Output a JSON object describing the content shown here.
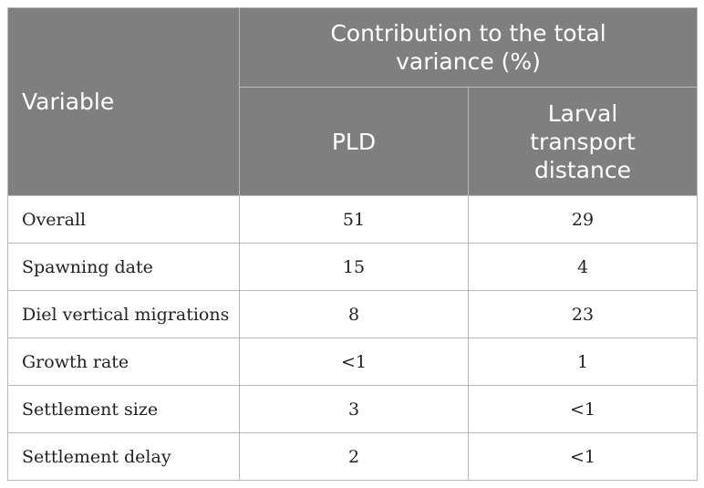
{
  "header": {
    "variable_label": "Variable",
    "group_label": "Contribution to the total variance (%)",
    "col_pld": "PLD",
    "col_transport": "Larval transport distance"
  },
  "rows": [
    {
      "variable": "Overall",
      "pld": "51",
      "transport": "29"
    },
    {
      "variable": "Spawning date",
      "pld": "15",
      "transport": "4"
    },
    {
      "variable": "Diel vertical migrations",
      "pld": "8",
      "transport": "23"
    },
    {
      "variable": "Growth rate",
      "pld": "<1",
      "transport": "1"
    },
    {
      "variable": "Settlement size",
      "pld": "3",
      "transport": "<1"
    },
    {
      "variable": "Settlement delay",
      "pld": "2",
      "transport": "<1"
    }
  ],
  "colors": {
    "header_bg": "#7f7f7f",
    "header_text": "#ffffff",
    "border": "#b9b9b9"
  }
}
